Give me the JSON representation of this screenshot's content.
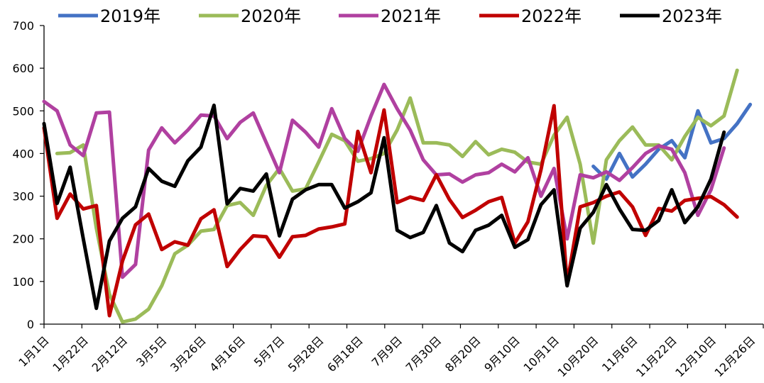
{
  "chart_data": {
    "type": "line",
    "ylim": [
      0,
      700
    ],
    "yticks": [
      "0",
      "100",
      "200",
      "300",
      "400",
      "500",
      "600",
      "700"
    ],
    "x_tick_labels": [
      "1月1日",
      "1月22日",
      "2月12日",
      "3月5日",
      "3月26日",
      "4月16日",
      "5月7日",
      "5月28日",
      "6月18日",
      "7月9日",
      "7月30日",
      "8月20日",
      "9月10日",
      "10月1日",
      "10月20日",
      "11月6日",
      "11月22日",
      "12月10日",
      "12月26日"
    ],
    "x_tick_index": [
      0,
      3,
      6,
      9,
      12,
      15,
      18,
      21,
      24,
      27,
      30,
      33,
      36,
      39,
      42,
      45,
      48,
      51,
      54
    ],
    "n_points": 56,
    "grid": false,
    "legend_position": "top",
    "series": [
      {
        "name": "2019年",
        "color": "#4472C4",
        "start": 42,
        "values": [
          370,
          340,
          400,
          345,
          375,
          410,
          430,
          390,
          500,
          425,
          435,
          470,
          515
        ]
      },
      {
        "name": "2020年",
        "color": "#9BBB59",
        "start": 1,
        "values": [
          400,
          402,
          420,
          225,
          70,
          5,
          12,
          35,
          90,
          165,
          185,
          218,
          222,
          278,
          285,
          255,
          325,
          365,
          312,
          317,
          380,
          445,
          430,
          382,
          388,
          400,
          455,
          530,
          425,
          425,
          420,
          393,
          428,
          397,
          410,
          403,
          380,
          375,
          443,
          485,
          375,
          190,
          385,
          430,
          462,
          420,
          420,
          385,
          440,
          485,
          465,
          488,
          595
        ]
      },
      {
        "name": "2021年",
        "color": "#B040A0",
        "start": 0,
        "values": [
          522,
          500,
          420,
          395,
          495,
          497,
          110,
          140,
          408,
          460,
          425,
          455,
          490,
          488,
          435,
          473,
          495,
          425,
          355,
          478,
          450,
          415,
          505,
          435,
          405,
          488,
          562,
          505,
          455,
          385,
          350,
          352,
          333,
          350,
          355,
          375,
          357,
          390,
          300,
          365,
          200,
          350,
          343,
          357,
          337,
          367,
          400,
          418,
          410,
          355,
          255,
          315,
          413
        ]
      },
      {
        "name": "2022年",
        "color": "#C00000",
        "start": 0,
        "values": [
          460,
          248,
          305,
          270,
          278,
          20,
          148,
          233,
          258,
          175,
          193,
          185,
          247,
          268,
          135,
          175,
          207,
          205,
          157,
          205,
          208,
          223,
          228,
          235,
          452,
          355,
          502,
          285,
          298,
          290,
          350,
          292,
          250,
          267,
          287,
          297,
          190,
          240,
          362,
          512,
          95,
          275,
          285,
          300,
          310,
          275,
          208,
          271,
          265,
          290,
          295,
          299,
          280,
          251
        ]
      },
      {
        "name": "2023年",
        "color": "#000000",
        "start": 0,
        "values": [
          470,
          283,
          368,
          200,
          37,
          195,
          248,
          275,
          365,
          335,
          323,
          383,
          415,
          513,
          282,
          318,
          312,
          352,
          207,
          293,
          315,
          327,
          327,
          272,
          287,
          308,
          437,
          220,
          203,
          215,
          278,
          190,
          170,
          220,
          232,
          255,
          180,
          198,
          280,
          315,
          90,
          225,
          262,
          327,
          270,
          222,
          220,
          243,
          315,
          238,
          275,
          340,
          450
        ]
      }
    ]
  }
}
